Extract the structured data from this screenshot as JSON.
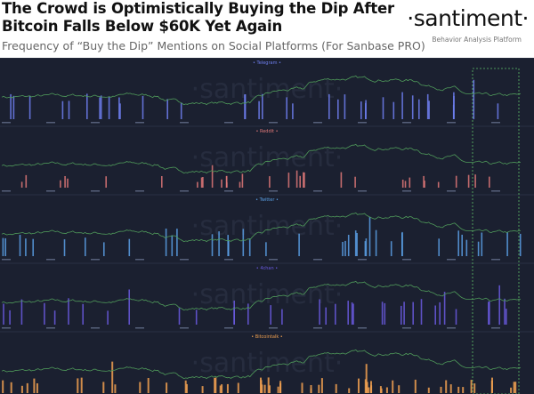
{
  "header": {
    "title_line1": "The Crowd is Optimistically Buying the Dip After",
    "title_line2": "Bitcoin Falls Below $60K Yet Again",
    "subtitle": "Frequency of “Buy the Dip” Mentions on Social Platforms (For Sanbase PRO)",
    "logo": "·santiment·",
    "tagline": "Behavior Analysis Platform"
  },
  "chart_data": {
    "type": "bar",
    "title": "Frequency of “Buy the Dip” Mentions on Social Platforms",
    "watermark": "·santiment·",
    "line_series": {
      "name": "Bitcoin price",
      "color": "#4f9a5a"
    },
    "series": [
      {
        "name": "Telegram",
        "color": "#6f7ff0"
      },
      {
        "name": "Reddit",
        "color": "#e07878"
      },
      {
        "name": "Twitter",
        "color": "#5aa0e6"
      },
      {
        "name": "4chan",
        "color": "#6a5ae0"
      },
      {
        "name": "Bitcointalk",
        "color": "#f0a050"
      }
    ]
  }
}
